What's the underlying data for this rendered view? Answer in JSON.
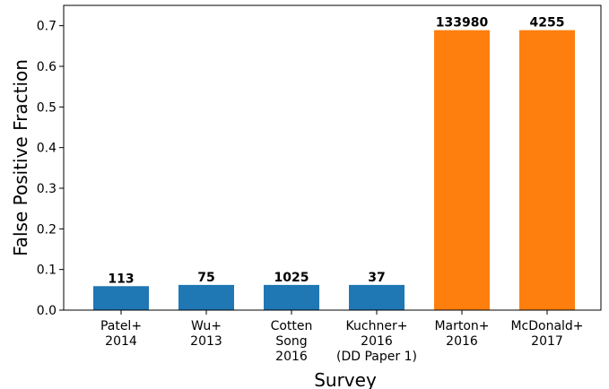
{
  "chart_data": {
    "type": "bar",
    "xlabel": "Survey",
    "ylabel": "False Positive Fraction",
    "categories": [
      [
        "Patel+",
        "2014"
      ],
      [
        "Wu+",
        "2013"
      ],
      [
        "Cotten",
        "Song",
        "2016"
      ],
      [
        "Kuchner+",
        "2016",
        "(DD Paper 1)"
      ],
      [
        "Marton+",
        "2016"
      ],
      [
        "McDonald+",
        "2017"
      ]
    ],
    "values": [
      0.059,
      0.062,
      0.062,
      0.062,
      0.689,
      0.689
    ],
    "counts": [
      113,
      75,
      1025,
      37,
      133980,
      4255
    ],
    "colors": [
      "#1f77b4",
      "#1f77b4",
      "#1f77b4",
      "#1f77b4",
      "#ff7f0e",
      "#ff7f0e"
    ],
    "ylim": [
      0,
      0.75
    ],
    "yticks": [
      {
        "value": 0,
        "label": "0.0"
      },
      0.1,
      0.2,
      0.3,
      0.4,
      0.5,
      0.6,
      0.7
    ],
    "grid": false
  }
}
